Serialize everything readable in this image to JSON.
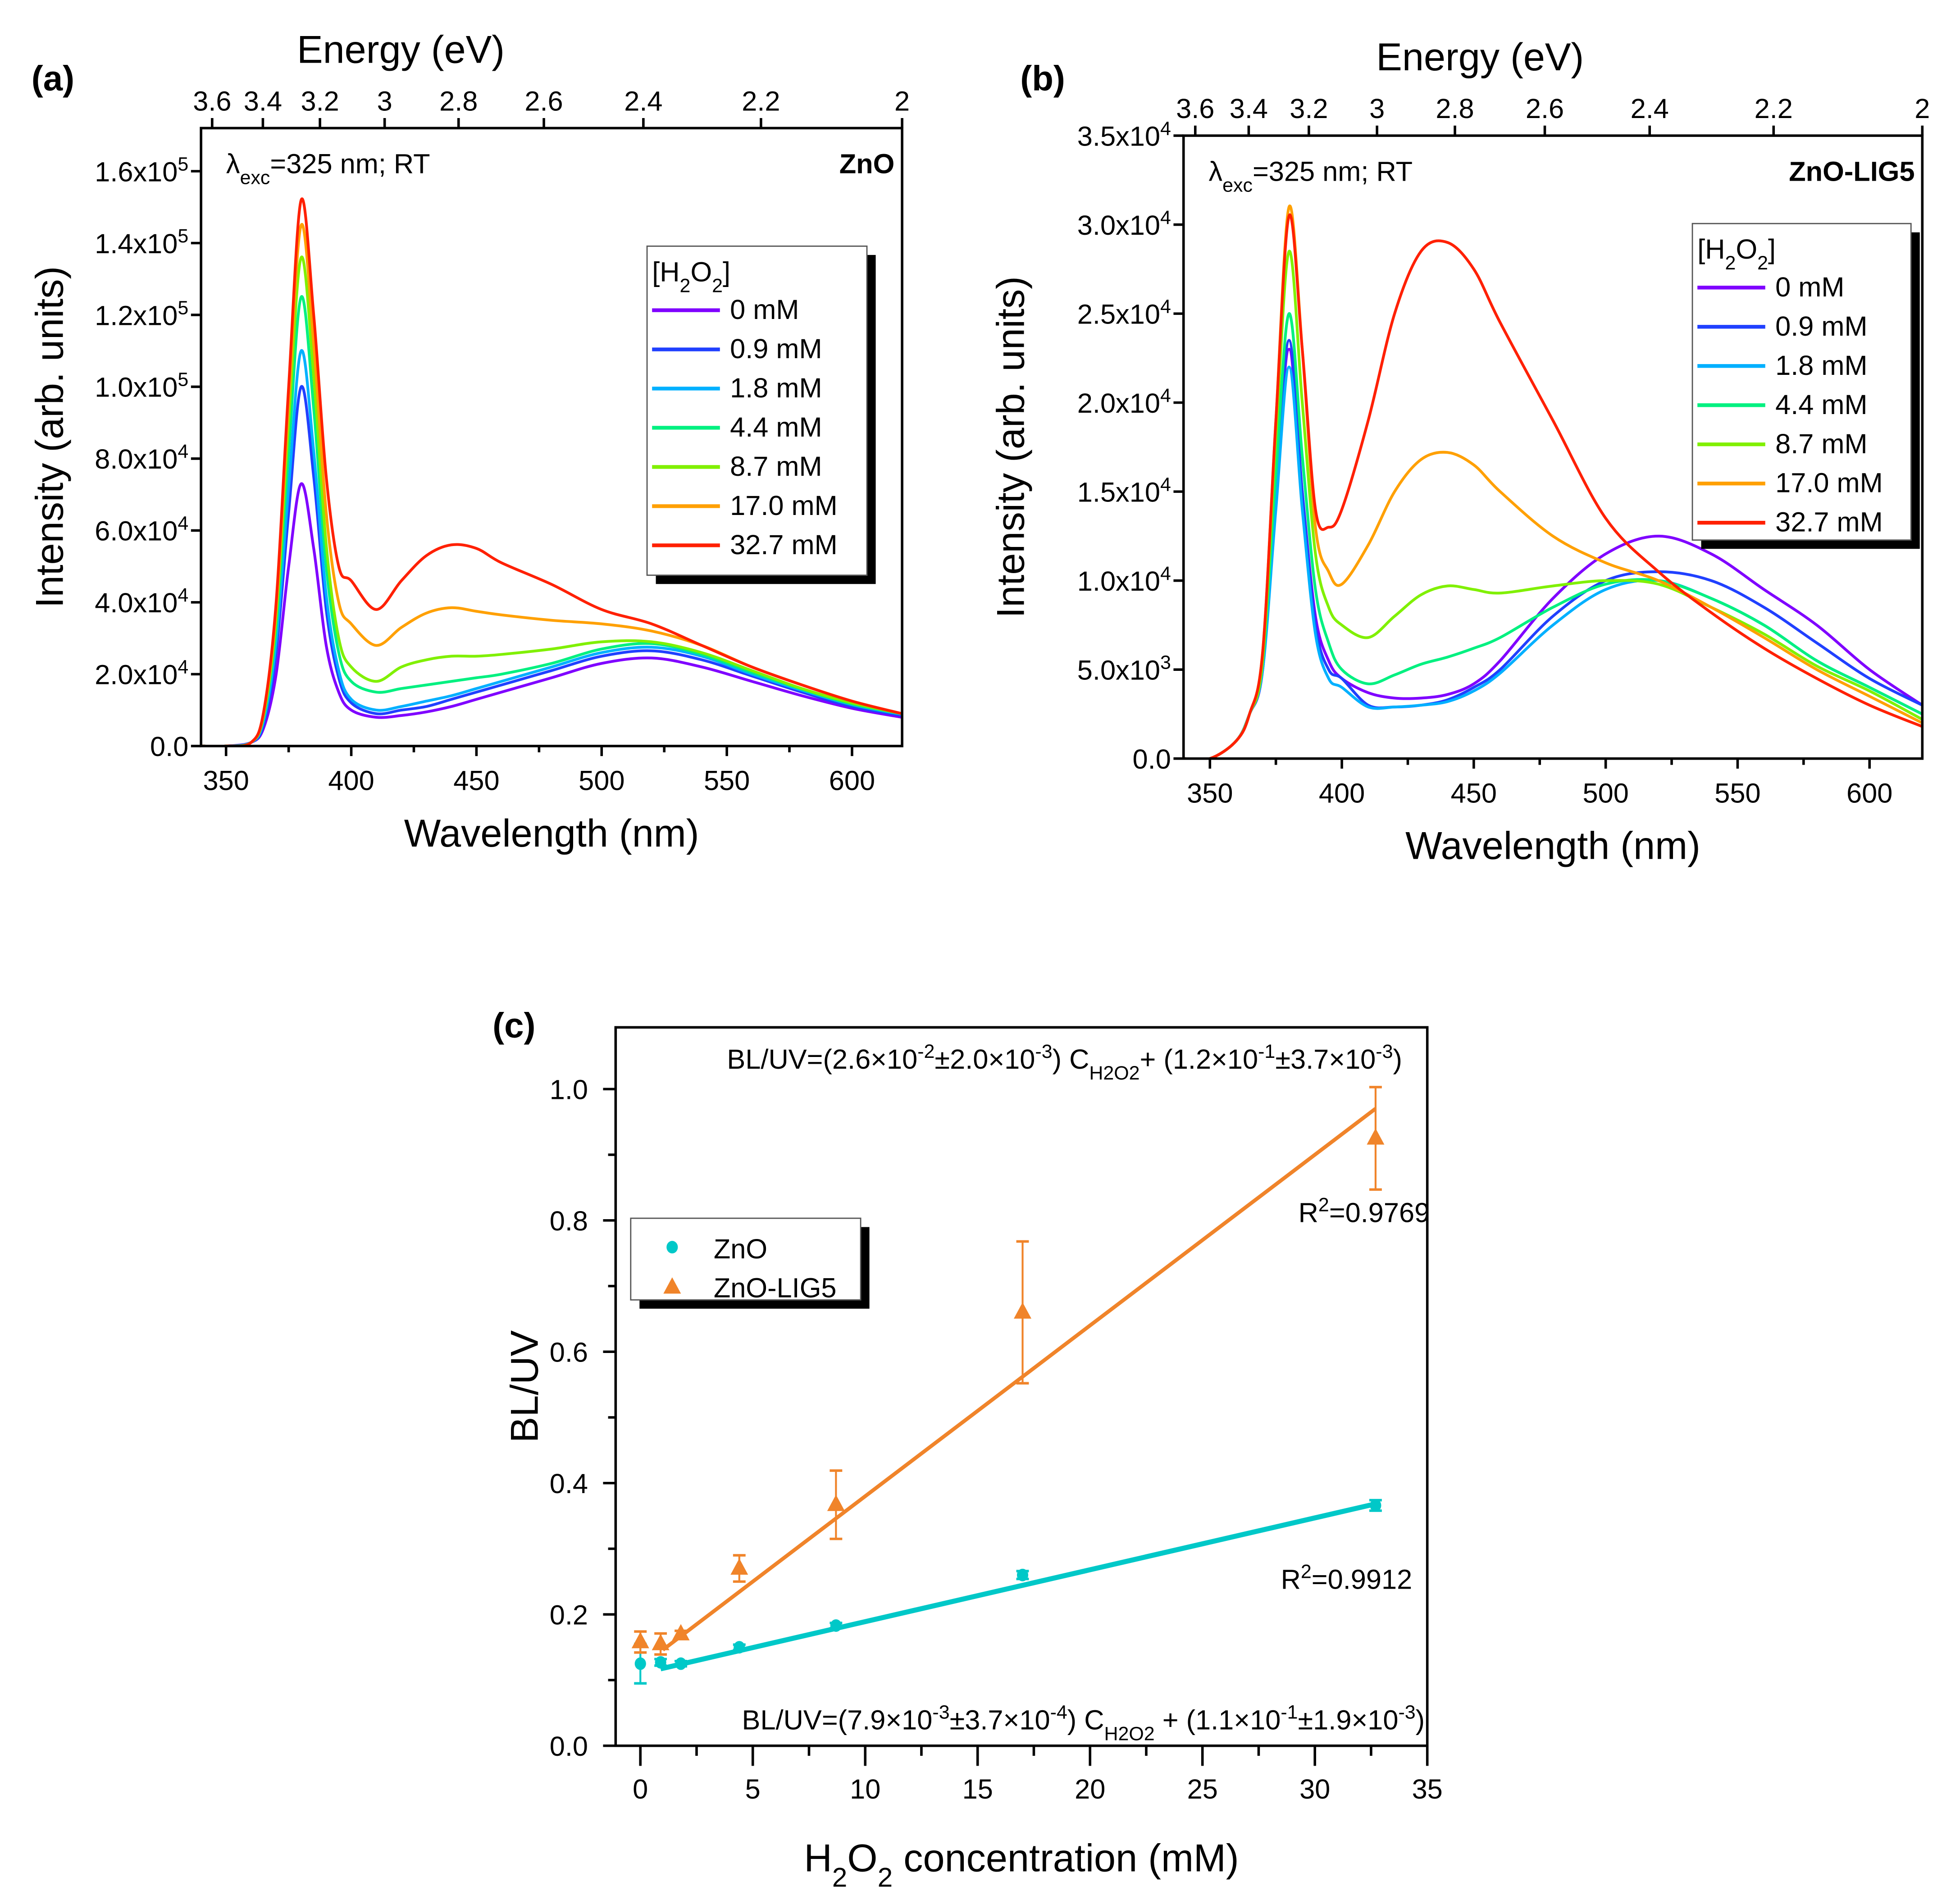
{
  "panels": {
    "a": "(a)",
    "b": "(b)",
    "c": "(c)"
  },
  "chart_data": [
    {
      "type": "line",
      "id": "a",
      "sample_label": "ZnO",
      "annotation": [
        {
          "t": "λ"
        },
        {
          "t": "exc",
          "s": "sub"
        },
        {
          "t": "=325 nm; RT"
        }
      ],
      "xlabel": "Wavelength (nm)",
      "ylabel": "Intensity (arb. units)",
      "x2label": "Energy (eV)",
      "xlim": [
        340,
        620
      ],
      "ylim": [
        0,
        172000
      ],
      "y_multiplier": 10000,
      "xticks": [
        350,
        400,
        450,
        500,
        550,
        600
      ],
      "yticks": [
        {
          "v": 0,
          "m": "0.0",
          "e": ""
        },
        {
          "v": 20000,
          "m": "2.0x10",
          "e": "4"
        },
        {
          "v": 40000,
          "m": "4.0x10",
          "e": "4"
        },
        {
          "v": 60000,
          "m": "6.0x10",
          "e": "4"
        },
        {
          "v": 80000,
          "m": "8.0x10",
          "e": "4"
        },
        {
          "v": 100000,
          "m": "1.0x10",
          "e": "5"
        },
        {
          "v": 120000,
          "m": "1.2x10",
          "e": "5"
        },
        {
          "v": 140000,
          "m": "1.4x10",
          "e": "5"
        },
        {
          "v": 160000,
          "m": "1.6x10",
          "e": "5"
        }
      ],
      "energy_ticks": [
        "3.6",
        "3.4",
        "3.2",
        "3",
        "2.8",
        "2.6",
        "2.4",
        "2.2",
        "2"
      ],
      "legend_title": [
        {
          "t": "[H"
        },
        {
          "t": "2",
          "s": "sub"
        },
        {
          "t": "O"
        },
        {
          "t": "2",
          "s": "sub"
        },
        {
          "t": "]"
        }
      ],
      "x": [
        340,
        350,
        360,
        365,
        370,
        375,
        380,
        385,
        390,
        395,
        400,
        410,
        420,
        430,
        440,
        450,
        460,
        480,
        500,
        520,
        540,
        560,
        580,
        600,
        620
      ],
      "series": [
        {
          "name": "0 mM",
          "color": "#7f00ff",
          "values": [
            0,
            0,
            0.1,
            0.5,
            2,
            5,
            7.3,
            5.5,
            2.8,
            1.5,
            1.0,
            0.8,
            0.85,
            0.95,
            1.1,
            1.3,
            1.5,
            1.9,
            2.3,
            2.45,
            2.2,
            1.8,
            1.4,
            1.05,
            0.8
          ]
        },
        {
          "name": "0.9 mM",
          "color": "#2040ff",
          "values": [
            0,
            0,
            0.1,
            0.6,
            2.6,
            6.5,
            10,
            7.5,
            3.8,
            1.9,
            1.2,
            0.9,
            1.0,
            1.1,
            1.3,
            1.5,
            1.7,
            2.1,
            2.5,
            2.65,
            2.4,
            1.95,
            1.5,
            1.1,
            0.85
          ]
        },
        {
          "name": "1.8 mM",
          "color": "#00b0ff",
          "values": [
            0,
            0,
            0.1,
            0.7,
            2.9,
            7.2,
            11,
            8.2,
            4.2,
            2.1,
            1.3,
            1.0,
            1.1,
            1.25,
            1.4,
            1.6,
            1.8,
            2.2,
            2.6,
            2.75,
            2.5,
            2.0,
            1.55,
            1.15,
            0.88
          ]
        },
        {
          "name": "4.4 mM",
          "color": "#00f080",
          "values": [
            0,
            0,
            0.1,
            0.8,
            3.3,
            8.2,
            12.5,
            9.4,
            5.0,
            2.6,
            1.8,
            1.5,
            1.6,
            1.7,
            1.8,
            1.9,
            2.0,
            2.3,
            2.7,
            2.85,
            2.55,
            2.05,
            1.58,
            1.17,
            0.9
          ]
        },
        {
          "name": "8.7 mM",
          "color": "#80f000",
          "values": [
            0,
            0,
            0.1,
            0.85,
            3.6,
            9,
            13.6,
            10.3,
            5.6,
            3.0,
            2.2,
            1.8,
            2.2,
            2.4,
            2.5,
            2.5,
            2.55,
            2.7,
            2.9,
            2.9,
            2.6,
            2.1,
            1.6,
            1.2,
            0.9
          ]
        },
        {
          "name": "17.0 mM",
          "color": "#ffa000",
          "values": [
            0,
            0,
            0.1,
            0.9,
            3.8,
            9.6,
            14.5,
            11.2,
            6.5,
            4.0,
            3.4,
            2.8,
            3.3,
            3.7,
            3.85,
            3.75,
            3.65,
            3.5,
            3.4,
            3.2,
            2.8,
            2.2,
            1.7,
            1.25,
            0.9
          ]
        },
        {
          "name": "32.7 mM",
          "color": "#ff2000",
          "values": [
            0,
            0,
            0.1,
            0.95,
            4,
            10,
            15.2,
            12,
            7.5,
            5.0,
            4.6,
            3.8,
            4.6,
            5.3,
            5.6,
            5.5,
            5.1,
            4.5,
            3.8,
            3.4,
            2.8,
            2.2,
            1.7,
            1.25,
            0.9
          ]
        }
      ]
    },
    {
      "type": "line",
      "id": "b",
      "sample_label": "ZnO-LIG5",
      "annotation": [
        {
          "t": "λ"
        },
        {
          "t": "exc",
          "s": "sub"
        },
        {
          "t": "=325 nm; RT"
        }
      ],
      "xlabel": "Wavelength (nm)",
      "ylabel": "Intensity (arb. units)",
      "x2label": "Energy (eV)",
      "xlim": [
        340,
        620
      ],
      "ylim": [
        0,
        35000
      ],
      "y_multiplier": 10000,
      "xticks": [
        350,
        400,
        450,
        500,
        550,
        600
      ],
      "yticks": [
        {
          "v": 0,
          "m": "0.0",
          "e": ""
        },
        {
          "v": 5000,
          "m": "5.0x10",
          "e": "3"
        },
        {
          "v": 10000,
          "m": "1.0x10",
          "e": "4"
        },
        {
          "v": 15000,
          "m": "1.5x10",
          "e": "4"
        },
        {
          "v": 20000,
          "m": "2.0x10",
          "e": "4"
        },
        {
          "v": 25000,
          "m": "2.5x10",
          "e": "4"
        },
        {
          "v": 30000,
          "m": "3.0x10",
          "e": "4"
        },
        {
          "v": 35000,
          "m": "3.5x10",
          "e": "4"
        }
      ],
      "energy_ticks": [
        "3.6",
        "3.4",
        "3.2",
        "3",
        "2.8",
        "2.6",
        "2.4",
        "2.2",
        "2"
      ],
      "legend_title": [
        {
          "t": "[H"
        },
        {
          "t": "2",
          "s": "sub"
        },
        {
          "t": "O"
        },
        {
          "t": "2",
          "s": "sub"
        },
        {
          "t": "]"
        }
      ],
      "x": [
        340,
        350,
        360,
        365,
        370,
        375,
        380,
        385,
        390,
        395,
        400,
        410,
        420,
        430,
        440,
        450,
        460,
        480,
        500,
        520,
        540,
        560,
        580,
        600,
        620
      ],
      "series": [
        {
          "name": "0 mM",
          "color": "#7f00ff",
          "values": [
            0,
            0,
            0.1,
            0.25,
            0.5,
            1.5,
            2.3,
            1.5,
            0.8,
            0.55,
            0.45,
            0.37,
            0.34,
            0.34,
            0.36,
            0.42,
            0.55,
            0.9,
            1.15,
            1.25,
            1.15,
            0.95,
            0.75,
            0.5,
            0.3
          ]
        },
        {
          "name": "0.9 mM",
          "color": "#2040ff",
          "values": [
            0,
            0,
            0.1,
            0.25,
            0.5,
            1.5,
            2.35,
            1.5,
            0.75,
            0.5,
            0.45,
            0.3,
            0.29,
            0.3,
            0.33,
            0.4,
            0.5,
            0.8,
            1.0,
            1.05,
            1.0,
            0.85,
            0.65,
            0.45,
            0.3
          ]
        },
        {
          "name": "1.8 mM",
          "color": "#00b0ff",
          "values": [
            0,
            0,
            0.1,
            0.25,
            0.5,
            1.4,
            2.2,
            1.4,
            0.7,
            0.45,
            0.4,
            0.29,
            0.29,
            0.3,
            0.32,
            0.38,
            0.48,
            0.75,
            0.95,
            1.0,
            0.9,
            0.75,
            0.55,
            0.4,
            0.25
          ]
        },
        {
          "name": "4.4 mM",
          "color": "#00f080",
          "values": [
            0,
            0,
            0.1,
            0.25,
            0.55,
            1.6,
            2.5,
            1.7,
            0.95,
            0.65,
            0.5,
            0.42,
            0.47,
            0.53,
            0.57,
            0.62,
            0.68,
            0.85,
            0.98,
            1.0,
            0.9,
            0.75,
            0.55,
            0.4,
            0.25
          ]
        },
        {
          "name": "8.7 mM",
          "color": "#80f000",
          "values": [
            0,
            0,
            0.1,
            0.25,
            0.55,
            1.8,
            2.85,
            2.0,
            1.15,
            0.85,
            0.75,
            0.68,
            0.8,
            0.92,
            0.97,
            0.95,
            0.93,
            0.97,
            1.0,
            0.98,
            0.85,
            0.7,
            0.52,
            0.38,
            0.22
          ]
        },
        {
          "name": "17.0 mM",
          "color": "#ffa000",
          "values": [
            0,
            0,
            0.1,
            0.25,
            0.6,
            1.9,
            3.1,
            2.3,
            1.3,
            1.05,
            0.98,
            1.2,
            1.5,
            1.68,
            1.72,
            1.65,
            1.5,
            1.25,
            1.1,
            1.0,
            0.85,
            0.68,
            0.5,
            0.35,
            0.2
          ]
        },
        {
          "name": "32.7 mM",
          "color": "#ff2000",
          "values": [
            0,
            0,
            0.1,
            0.25,
            0.6,
            1.9,
            3.05,
            2.3,
            1.4,
            1.3,
            1.4,
            1.9,
            2.5,
            2.85,
            2.9,
            2.75,
            2.45,
            1.9,
            1.35,
            1.05,
            0.82,
            0.62,
            0.45,
            0.3,
            0.18
          ]
        }
      ]
    },
    {
      "type": "scatter",
      "id": "c",
      "xlabel": [
        {
          "t": "H"
        },
        {
          "t": "2",
          "s": "sub"
        },
        {
          "t": "O"
        },
        {
          "t": "2",
          "s": "sub"
        },
        {
          "t": " concentration (mM)"
        }
      ],
      "ylabel": "BL/UV",
      "xlim": [
        -1.1,
        35
      ],
      "ylim": [
        0,
        1.094
      ],
      "xticks": [
        "0",
        "5",
        "10",
        "15",
        "20",
        "25",
        "30",
        "35"
      ],
      "yticks": [
        "0.0",
        "0.2",
        "0.4",
        "0.6",
        "0.8",
        "1.0"
      ],
      "series": [
        {
          "name": "ZnO",
          "color": "#00c8c8",
          "marker": "hexagon",
          "x": [
            0,
            0.9,
            1.8,
            4.4,
            8.7,
            17.0,
            32.7
          ],
          "y": [
            0.125,
            0.127,
            0.125,
            0.15,
            0.183,
            0.26,
            0.366
          ],
          "err": [
            0.03,
            0.005,
            0.004,
            0.004,
            0.004,
            0.006,
            0.008
          ],
          "fit": {
            "slope": 0.0079,
            "intercept": 0.11,
            "x_range": [
              0.9,
              32.7
            ]
          },
          "r2": [
            {
              "t": "R"
            },
            {
              "t": "2",
              "s": "sup"
            },
            {
              "t": "=0.9912"
            }
          ],
          "equation": [
            {
              "t": "BL/UV=(7.9×10"
            },
            {
              "t": "-3",
              "s": "sup"
            },
            {
              "t": "±3.7×10"
            },
            {
              "t": "-4",
              "s": "sup"
            },
            {
              "t": ") C"
            },
            {
              "t": "H2O2",
              "s": "sub"
            },
            {
              "t": " + (1.1×10"
            },
            {
              "t": "-1",
              "s": "sup"
            },
            {
              "t": "±1.9×10"
            },
            {
              "t": "-3",
              "s": "sup"
            },
            {
              "t": ")"
            }
          ]
        },
        {
          "name": "ZnO-LIG5",
          "color": "#f0842a",
          "marker": "triangle",
          "x": [
            0,
            0.9,
            1.8,
            4.4,
            8.7,
            17.0,
            32.7
          ],
          "y": [
            0.158,
            0.155,
            0.17,
            0.27,
            0.367,
            0.66,
            0.925
          ],
          "err": [
            0.016,
            0.016,
            0.005,
            0.02,
            0.052,
            0.108,
            0.078
          ],
          "fit": {
            "slope": 0.026,
            "intercept": 0.12,
            "x_range": [
              1.0,
              32.7
            ]
          },
          "r2": [
            {
              "t": "R"
            },
            {
              "t": "2",
              "s": "sup"
            },
            {
              "t": "=0.9769"
            }
          ],
          "equation": [
            {
              "t": "BL/UV=(2.6×10"
            },
            {
              "t": "-2",
              "s": "sup"
            },
            {
              "t": "±2.0×10"
            },
            {
              "t": "-3",
              "s": "sup"
            },
            {
              "t": ") C"
            },
            {
              "t": "H2O2",
              "s": "sub"
            },
            {
              "t": "+ (1.2×10"
            },
            {
              "t": "-1",
              "s": "sup"
            },
            {
              "t": "±3.7×10"
            },
            {
              "t": "-3",
              "s": "sup"
            },
            {
              "t": ")"
            }
          ]
        }
      ],
      "legend": [
        "ZnO",
        "ZnO-LIG5"
      ]
    }
  ]
}
